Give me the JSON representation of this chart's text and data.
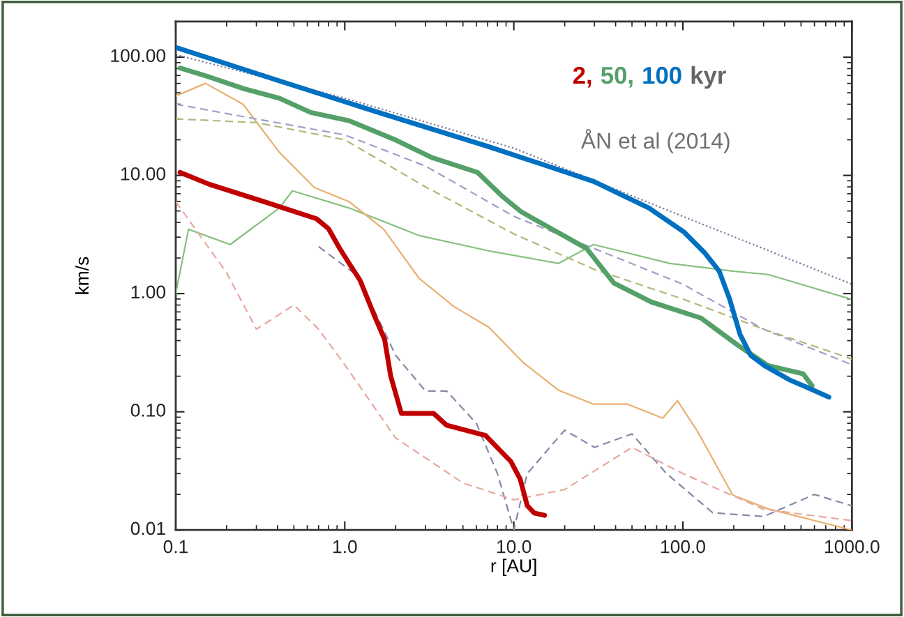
{
  "chart_data": {
    "type": "line",
    "xlabel": "r [AU]",
    "ylabel": "km/s",
    "legend_title": "kyr",
    "legend": "top right",
    "log": "xy",
    "grid": false,
    "marker": "none",
    "xlim": [
      0.1,
      1000
    ],
    "xticks": [
      {
        "value": 0.1,
        "label": "0.1"
      },
      {
        "value": 1,
        "label": "1.0"
      },
      {
        "value": 10,
        "label": "10.0"
      },
      {
        "value": 100,
        "label": "100.0"
      },
      {
        "value": 1000,
        "label": "1000.0"
      }
    ],
    "ylim": [
      0.01,
      200
    ],
    "yticks": [
      {
        "value": 0.01,
        "label": "0.01"
      },
      {
        "value": 0.1,
        "label": "0.10"
      },
      {
        "value": 1,
        "label": "1.00"
      },
      {
        "value": 10,
        "label": "10.00"
      },
      {
        "value": 100,
        "label": "100.00"
      }
    ],
    "annotations": [
      "ÅN et al (2014)"
    ],
    "series": [
      {
        "color": "#7878a0",
        "line_style": "dotted",
        "x": [
          0.1,
          1,
          10,
          100,
          300,
          1000
        ],
        "values": [
          105,
          45,
          17,
          4.5,
          2.4,
          1.2
        ]
      },
      {
        "color": "#88c080",
        "line_style": "solid",
        "x": [
          0.1,
          0.119,
          0.21,
          0.41,
          0.49,
          1.06,
          2.75,
          7.1,
          18.4,
          29.6,
          84,
          197,
          319,
          980
        ],
        "values": [
          1.0,
          3.5,
          2.6,
          5.3,
          7.4,
          5.3,
          3.1,
          2.3,
          1.8,
          2.6,
          1.8,
          1.55,
          1.45,
          0.9
        ]
      },
      {
        "color": "#e8b070",
        "line_style": "solid",
        "x": [
          0.1,
          0.15,
          0.25,
          0.41,
          0.66,
          1.06,
          1.7,
          2.75,
          4.4,
          7.1,
          11.4,
          18.4,
          29.6,
          47,
          76,
          93,
          123,
          197,
          319,
          1000
        ],
        "values": [
          47,
          60,
          40,
          15.7,
          7.9,
          6.0,
          3.5,
          1.35,
          0.78,
          0.52,
          0.26,
          0.152,
          0.116,
          0.116,
          0.0885,
          0.124,
          0.067,
          0.0198,
          0.0151,
          0.01
        ]
      },
      {
        "color": "#a0a0c8",
        "line_style": "dashed",
        "x": [
          0.1,
          0.3,
          1,
          3,
          10,
          30,
          100,
          300,
          1000
        ],
        "values": [
          40,
          30,
          22,
          12,
          4.5,
          2.4,
          1.2,
          0.5,
          0.25
        ]
      },
      {
        "color": "#b0b878",
        "line_style": "dashed",
        "x": [
          0.1,
          0.3,
          1,
          3,
          10,
          30,
          100,
          300,
          1000
        ],
        "values": [
          30,
          28,
          20,
          8,
          3.2,
          1.6,
          0.9,
          0.5,
          0.28
        ]
      },
      {
        "color": "#8888a8",
        "line_style": "dashed",
        "x": [
          0.7,
          1.2,
          2,
          3,
          4,
          6,
          8,
          10,
          12,
          20,
          30,
          50,
          80,
          150,
          300,
          600,
          1000
        ],
        "values": [
          2.5,
          1.4,
          0.3,
          0.15,
          0.15,
          0.08,
          0.03,
          0.01,
          0.03,
          0.07,
          0.05,
          0.065,
          0.03,
          0.014,
          0.013,
          0.02,
          0.016
        ]
      },
      {
        "color": "#e8a8a0",
        "line_style": "dashed",
        "x": [
          0.1,
          0.2,
          0.3,
          0.5,
          0.7,
          1,
          2,
          5,
          10,
          20,
          50,
          100,
          300,
          1000
        ],
        "values": [
          6,
          1.5,
          0.5,
          0.8,
          0.5,
          0.25,
          0.06,
          0.025,
          0.018,
          0.022,
          0.05,
          0.03,
          0.015,
          0.012
        ]
      },
      {
        "name": "2,",
        "color": "#c00000",
        "line_style": "solid",
        "x": [
          0.106,
          0.158,
          0.344,
          0.68,
          0.8,
          0.93,
          1.08,
          1.23,
          1.51,
          1.72,
          1.87,
          2.16,
          3.35,
          4.0,
          6.8,
          9.6,
          10.9,
          12.0,
          13.2,
          15.2
        ],
        "values": [
          10.6,
          8.4,
          5.9,
          4.3,
          3.55,
          2.43,
          1.73,
          1.3,
          0.63,
          0.41,
          0.2,
          0.097,
          0.097,
          0.077,
          0.063,
          0.038,
          0.027,
          0.0161,
          0.0139,
          0.0133
        ]
      },
      {
        "name": "50,",
        "color": "#55a068",
        "line_style": "solid",
        "x": [
          0.106,
          0.158,
          0.254,
          0.41,
          0.63,
          1.06,
          2.02,
          3.3,
          6.1,
          8.6,
          11.1,
          15.5,
          27,
          39,
          65,
          128,
          212,
          319,
          514,
          581
        ],
        "values": [
          81,
          68,
          54,
          45,
          34,
          29,
          19.8,
          14.1,
          10.6,
          6.6,
          4.9,
          3.75,
          2.4,
          1.23,
          0.85,
          0.62,
          0.365,
          0.246,
          0.21,
          0.166
        ]
      },
      {
        "name": "100",
        "color": "#0070c0",
        "line_style": "solid",
        "x": [
          0.1,
          0.41,
          1.7,
          7.1,
          29.6,
          63,
          102,
          135,
          164,
          189,
          218,
          252,
          304,
          425,
          565,
          731
        ],
        "values": [
          121,
          63,
          33,
          17.5,
          8.9,
          5.3,
          3.3,
          2.2,
          1.55,
          0.9,
          0.45,
          0.3,
          0.246,
          0.187,
          0.157,
          0.133
        ]
      }
    ]
  }
}
